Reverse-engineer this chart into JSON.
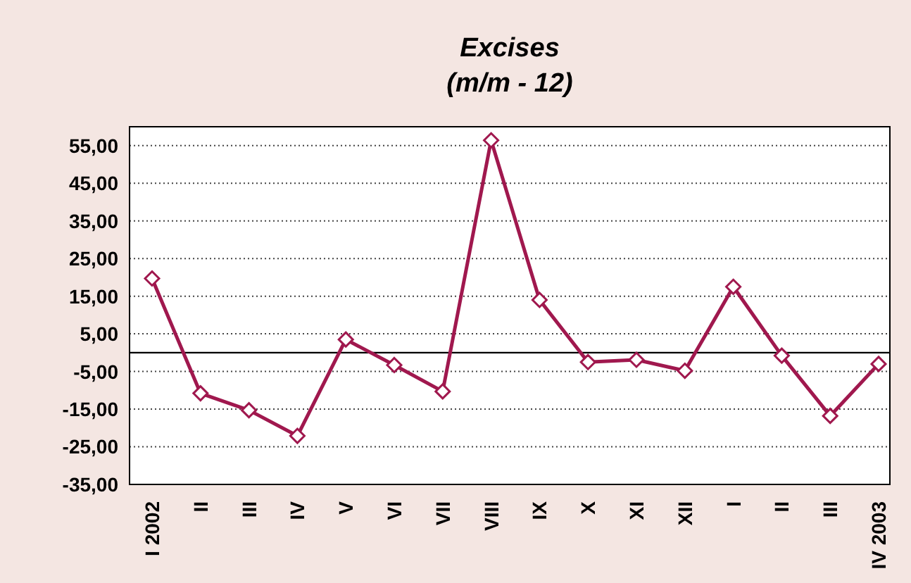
{
  "chart_data": {
    "type": "line",
    "title": "Excises",
    "subtitle": "(m/m - 12)",
    "categories": [
      "I 2002",
      "II",
      "III",
      "IV",
      "V",
      "VI",
      "VII",
      "VIII",
      "IX",
      "X",
      "XI",
      "XII",
      "I",
      "II",
      "III",
      "IV 2003"
    ],
    "series": [
      {
        "color": "#a0184e",
        "values": [
          19.7,
          -10.8,
          -15.3,
          -22.1,
          3.5,
          -3.3,
          -10.3,
          56.4,
          14.0,
          -2.5,
          -1.9,
          -4.8,
          17.5,
          -0.8,
          -16.8,
          -3.0
        ]
      }
    ],
    "ylim": [
      -35,
      60
    ],
    "yticks": [
      {
        "value": 55,
        "label": "55,00"
      },
      {
        "value": 45,
        "label": "45,00"
      },
      {
        "value": 35,
        "label": "35,00"
      },
      {
        "value": 25,
        "label": "25,00"
      },
      {
        "value": 15,
        "label": "15,00"
      },
      {
        "value": 5,
        "label": "5,00"
      },
      {
        "value": -5,
        "label": "-5,00"
      },
      {
        "value": -15,
        "label": "-15,00"
      },
      {
        "value": -25,
        "label": "-25,00"
      },
      {
        "value": -35,
        "label": "-35,00"
      }
    ],
    "ref_lines": [
      {
        "axis": "y",
        "value": 0,
        "label": null,
        "color": "#000000"
      }
    ],
    "grid": "y",
    "legend": false,
    "marker": "diamond",
    "line_style": "solid"
  }
}
